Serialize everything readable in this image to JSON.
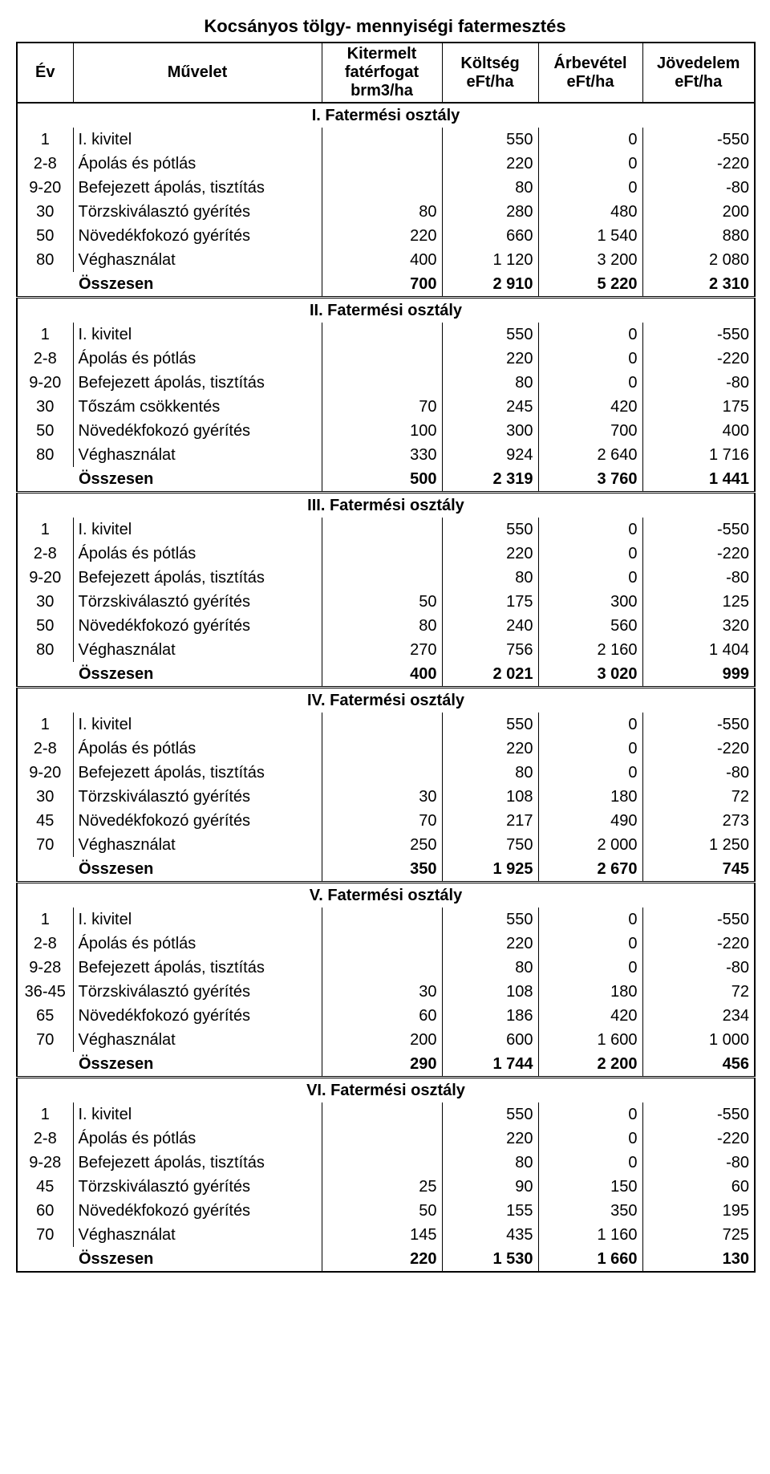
{
  "title": "Kocsányos tölgy- mennyiségi fatermesztés",
  "headers": {
    "ev": "Év",
    "muvelet": "Művelet",
    "kitermelt_l1": "Kitermelt",
    "kitermelt_l2": "fatérfogat brm3/ha",
    "koltseg_l1": "Költség",
    "koltseg_l2": "eFt/ha",
    "arbevetel_l1": "Árbevétel",
    "arbevetel_l2": "eFt/ha",
    "jovedelem_l1": "Jövedelem",
    "jovedelem_l2": "eFt/ha"
  },
  "sum_label": "Összesen",
  "sections": [
    {
      "title": "I. Fatermési osztály",
      "rows": [
        {
          "ev": "1",
          "muv": "I. kivitel",
          "kit": "",
          "kol": "550",
          "arb": "0",
          "jov": "-550"
        },
        {
          "ev": "2-8",
          "muv": "Ápolás és pótlás",
          "kit": "",
          "kol": "220",
          "arb": "0",
          "jov": "-220"
        },
        {
          "ev": "9-20",
          "muv": "Befejezett ápolás, tisztítás",
          "kit": "",
          "kol": "80",
          "arb": "0",
          "jov": "-80"
        },
        {
          "ev": "30",
          "muv": "Törzskiválasztó gyérítés",
          "kit": "80",
          "kol": "280",
          "arb": "480",
          "jov": "200"
        },
        {
          "ev": "50",
          "muv": "Növedékfokozó gyérítés",
          "kit": "220",
          "kol": "660",
          "arb": "1 540",
          "jov": "880"
        },
        {
          "ev": "80",
          "muv": "Véghasználat",
          "kit": "400",
          "kol": "1 120",
          "arb": "3 200",
          "jov": "2 080"
        }
      ],
      "sum": {
        "kit": "700",
        "kol": "2 910",
        "arb": "5 220",
        "jov": "2 310"
      }
    },
    {
      "title": "II. Fatermési osztály",
      "rows": [
        {
          "ev": "1",
          "muv": "I. kivitel",
          "kit": "",
          "kol": "550",
          "arb": "0",
          "jov": "-550"
        },
        {
          "ev": "2-8",
          "muv": "Ápolás és pótlás",
          "kit": "",
          "kol": "220",
          "arb": "0",
          "jov": "-220"
        },
        {
          "ev": "9-20",
          "muv": "Befejezett ápolás, tisztítás",
          "kit": "",
          "kol": "80",
          "arb": "0",
          "jov": "-80"
        },
        {
          "ev": "30",
          "muv": "Tőszám csökkentés",
          "kit": "70",
          "kol": "245",
          "arb": "420",
          "jov": "175"
        },
        {
          "ev": "50",
          "muv": "Növedékfokozó gyérítés",
          "kit": "100",
          "kol": "300",
          "arb": "700",
          "jov": "400"
        },
        {
          "ev": "80",
          "muv": "Véghasználat",
          "kit": "330",
          "kol": "924",
          "arb": "2 640",
          "jov": "1 716"
        }
      ],
      "sum": {
        "kit": "500",
        "kol": "2 319",
        "arb": "3 760",
        "jov": "1 441"
      }
    },
    {
      "title": "III. Fatermési osztály",
      "rows": [
        {
          "ev": "1",
          "muv": "I. kivitel",
          "kit": "",
          "kol": "550",
          "arb": "0",
          "jov": "-550"
        },
        {
          "ev": "2-8",
          "muv": "Ápolás és pótlás",
          "kit": "",
          "kol": "220",
          "arb": "0",
          "jov": "-220"
        },
        {
          "ev": "9-20",
          "muv": "Befejezett ápolás, tisztítás",
          "kit": "",
          "kol": "80",
          "arb": "0",
          "jov": "-80"
        },
        {
          "ev": "30",
          "muv": "Törzskiválasztó gyérítés",
          "kit": "50",
          "kol": "175",
          "arb": "300",
          "jov": "125"
        },
        {
          "ev": "50",
          "muv": "Növedékfokozó gyérítés",
          "kit": "80",
          "kol": "240",
          "arb": "560",
          "jov": "320"
        },
        {
          "ev": "80",
          "muv": "Véghasználat",
          "kit": "270",
          "kol": "756",
          "arb": "2 160",
          "jov": "1 404"
        }
      ],
      "sum": {
        "kit": "400",
        "kol": "2 021",
        "arb": "3 020",
        "jov": "999"
      }
    },
    {
      "title": "IV. Fatermési osztály",
      "rows": [
        {
          "ev": "1",
          "muv": "I. kivitel",
          "kit": "",
          "kol": "550",
          "arb": "0",
          "jov": "-550"
        },
        {
          "ev": "2-8",
          "muv": "Ápolás és pótlás",
          "kit": "",
          "kol": "220",
          "arb": "0",
          "jov": "-220"
        },
        {
          "ev": "9-20",
          "muv": "Befejezett ápolás, tisztítás",
          "kit": "",
          "kol": "80",
          "arb": "0",
          "jov": "-80"
        },
        {
          "ev": "30",
          "muv": "Törzskiválasztó gyérítés",
          "kit": "30",
          "kol": "108",
          "arb": "180",
          "jov": "72"
        },
        {
          "ev": "45",
          "muv": "Növedékfokozó gyérítés",
          "kit": "70",
          "kol": "217",
          "arb": "490",
          "jov": "273"
        },
        {
          "ev": "70",
          "muv": "Véghasználat",
          "kit": "250",
          "kol": "750",
          "arb": "2 000",
          "jov": "1 250"
        }
      ],
      "sum": {
        "kit": "350",
        "kol": "1 925",
        "arb": "2 670",
        "jov": "745"
      }
    },
    {
      "title": "V. Fatermési osztály",
      "rows": [
        {
          "ev": "1",
          "muv": "I. kivitel",
          "kit": "",
          "kol": "550",
          "arb": "0",
          "jov": "-550"
        },
        {
          "ev": "2-8",
          "muv": "Ápolás és pótlás",
          "kit": "",
          "kol": "220",
          "arb": "0",
          "jov": "-220"
        },
        {
          "ev": "9-28",
          "muv": "Befejezett ápolás, tisztítás",
          "kit": "",
          "kol": "80",
          "arb": "0",
          "jov": "-80"
        },
        {
          "ev": "36-45",
          "muv": "Törzskiválasztó gyérítés",
          "kit": "30",
          "kol": "108",
          "arb": "180",
          "jov": "72"
        },
        {
          "ev": "65",
          "muv": "Növedékfokozó gyérítés",
          "kit": "60",
          "kol": "186",
          "arb": "420",
          "jov": "234"
        },
        {
          "ev": "70",
          "muv": "Véghasználat",
          "kit": "200",
          "kol": "600",
          "arb": "1 600",
          "jov": "1 000"
        }
      ],
      "sum": {
        "kit": "290",
        "kol": "1 744",
        "arb": "2 200",
        "jov": "456"
      }
    },
    {
      "title": "VI. Fatermési osztály",
      "rows": [
        {
          "ev": "1",
          "muv": "I. kivitel",
          "kit": "",
          "kol": "550",
          "arb": "0",
          "jov": "-550"
        },
        {
          "ev": "2-8",
          "muv": "Ápolás és pótlás",
          "kit": "",
          "kol": "220",
          "arb": "0",
          "jov": "-220"
        },
        {
          "ev": "9-28",
          "muv": "Befejezett ápolás, tisztítás",
          "kit": "",
          "kol": "80",
          "arb": "0",
          "jov": "-80"
        },
        {
          "ev": "45",
          "muv": "Törzskiválasztó gyérítés",
          "kit": "25",
          "kol": "90",
          "arb": "150",
          "jov": "60"
        },
        {
          "ev": "60",
          "muv": "Növedékfokozó gyérítés",
          "kit": "50",
          "kol": "155",
          "arb": "350",
          "jov": "195"
        },
        {
          "ev": "70",
          "muv": "Véghasználat",
          "kit": "145",
          "kol": "435",
          "arb": "1 160",
          "jov": "725"
        }
      ],
      "sum": {
        "kit": "220",
        "kol": "1 530",
        "arb": "1 660",
        "jov": "130"
      }
    }
  ]
}
